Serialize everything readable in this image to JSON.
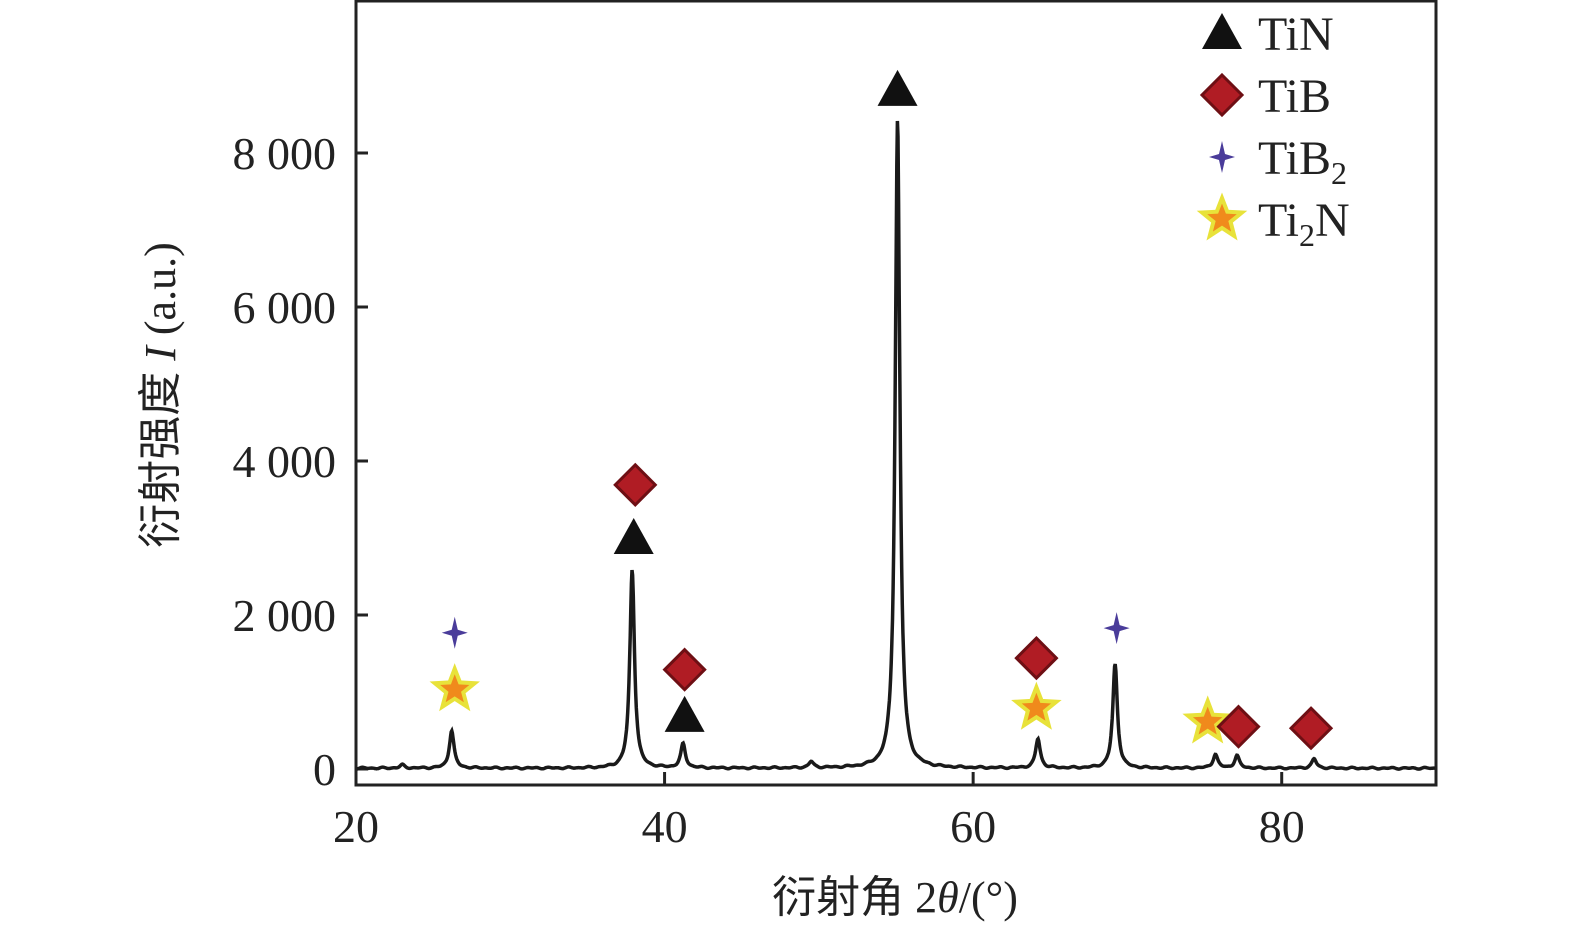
{
  "chart_data": {
    "type": "line",
    "title": "",
    "xlabel": {
      "prefix": "衍射角 2",
      "symbol": "θ",
      "suffix": "/(°)"
    },
    "ylabel": {
      "prefix": "衍射强度 ",
      "symbol": "I",
      "suffix": " (a.u.)"
    },
    "xlim": [
      20,
      90
    ],
    "ylim": [
      -200,
      10000
    ],
    "x_ticks": [
      {
        "v": 20,
        "label": "20"
      },
      {
        "v": 40,
        "label": "40"
      },
      {
        "v": 60,
        "label": "60"
      },
      {
        "v": 80,
        "label": "80"
      }
    ],
    "y_ticks": [
      {
        "v": 0,
        "label": "0"
      },
      {
        "v": 2000,
        "label": "2 000"
      },
      {
        "v": 4000,
        "label": "4 000"
      },
      {
        "v": 6000,
        "label": "6 000"
      },
      {
        "v": 8000,
        "label": "8 000"
      }
    ],
    "grid": false,
    "legend_position": "top-right",
    "series_color": "#1a1a1a",
    "peaks": [
      {
        "x": 23.0,
        "y": 40
      },
      {
        "x": 26.2,
        "y": 490
      },
      {
        "x": 37.9,
        "y": 2580
      },
      {
        "x": 41.2,
        "y": 310
      },
      {
        "x": 49.5,
        "y": 80
      },
      {
        "x": 55.1,
        "y": 8430
      },
      {
        "x": 64.2,
        "y": 380
      },
      {
        "x": 69.2,
        "y": 1350
      },
      {
        "x": 75.7,
        "y": 180
      },
      {
        "x": 77.1,
        "y": 160
      },
      {
        "x": 82.1,
        "y": 120
      }
    ],
    "legend": [
      {
        "phase": "TiN",
        "base": "TiN",
        "sub": "",
        "tail": "",
        "marker": "triangle",
        "color": "#111111"
      },
      {
        "phase": "TiB",
        "base": "TiB",
        "sub": "",
        "tail": "",
        "marker": "diamond",
        "color": "#b01c24"
      },
      {
        "phase": "TiB2",
        "base": "TiB",
        "sub": "2",
        "tail": "",
        "marker": "plus",
        "color": "#4a3c9a"
      },
      {
        "phase": "Ti2N",
        "base": "Ti",
        "sub": "2",
        "tail": "N",
        "marker": "star",
        "color": "#f08a1c"
      }
    ],
    "annotations": [
      {
        "phase": "TiB2",
        "x": 26.4,
        "y": 1770
      },
      {
        "phase": "Ti2N",
        "x": 26.4,
        "y": 1030
      },
      {
        "phase": "TiB",
        "x": 38.1,
        "y": 3690
      },
      {
        "phase": "TiN",
        "x": 38.0,
        "y": 3000
      },
      {
        "phase": "TiB",
        "x": 41.3,
        "y": 1290
      },
      {
        "phase": "TiN",
        "x": 41.3,
        "y": 690
      },
      {
        "phase": "TiN",
        "x": 55.1,
        "y": 8820
      },
      {
        "phase": "TiB",
        "x": 64.1,
        "y": 1440
      },
      {
        "phase": "Ti2N",
        "x": 64.1,
        "y": 790
      },
      {
        "phase": "TiB2",
        "x": 69.3,
        "y": 1830
      },
      {
        "phase": "Ti2N",
        "x": 75.2,
        "y": 610
      },
      {
        "phase": "TiB",
        "x": 77.2,
        "y": 550
      },
      {
        "phase": "TiB",
        "x": 81.9,
        "y": 530
      }
    ]
  }
}
